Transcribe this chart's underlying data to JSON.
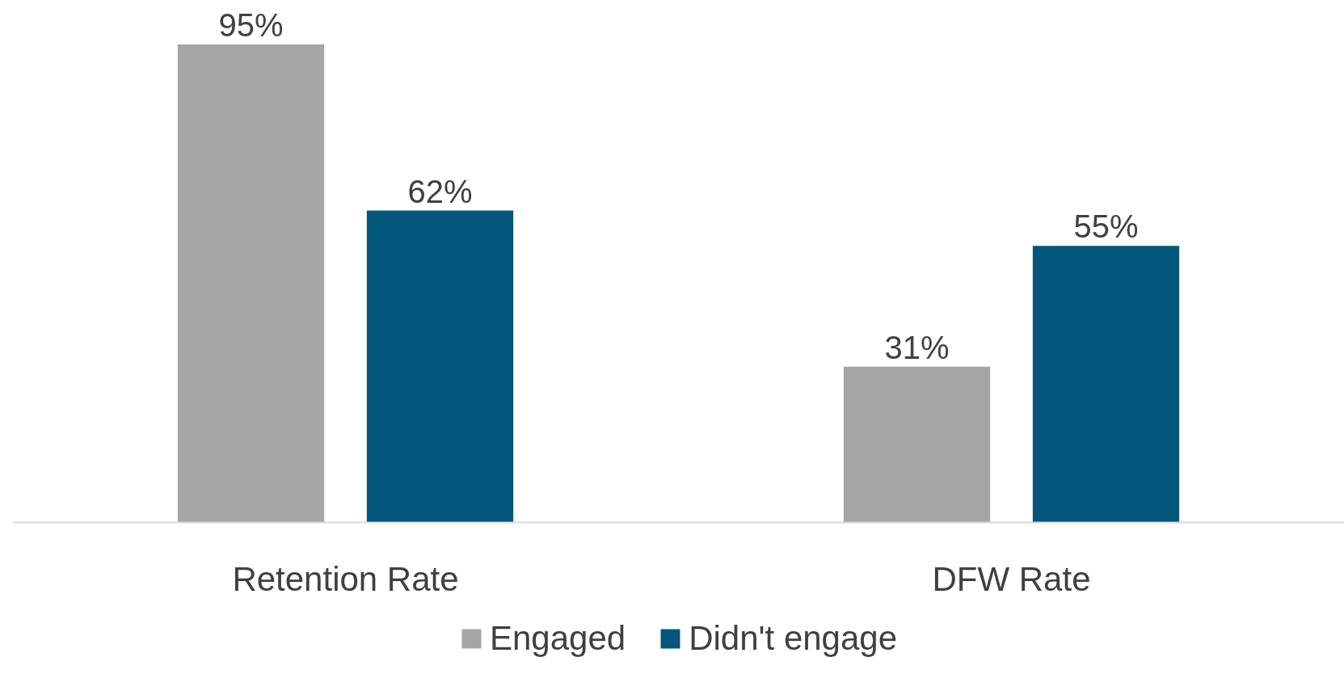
{
  "chart_data": {
    "type": "bar",
    "categories": [
      "Retention Rate",
      "DFW Rate"
    ],
    "series": [
      {
        "name": "Engaged",
        "color": "#a5a5a5",
        "values": [
          95,
          31
        ],
        "value_labels": [
          "95%",
          "31%"
        ]
      },
      {
        "name": "Didn't engage",
        "color": "#02577a",
        "values": [
          62,
          55
        ],
        "value_labels": [
          "62%",
          "55%"
        ]
      }
    ],
    "tick_labels": "x",
    "grid": false,
    "legend": "bottom"
  }
}
